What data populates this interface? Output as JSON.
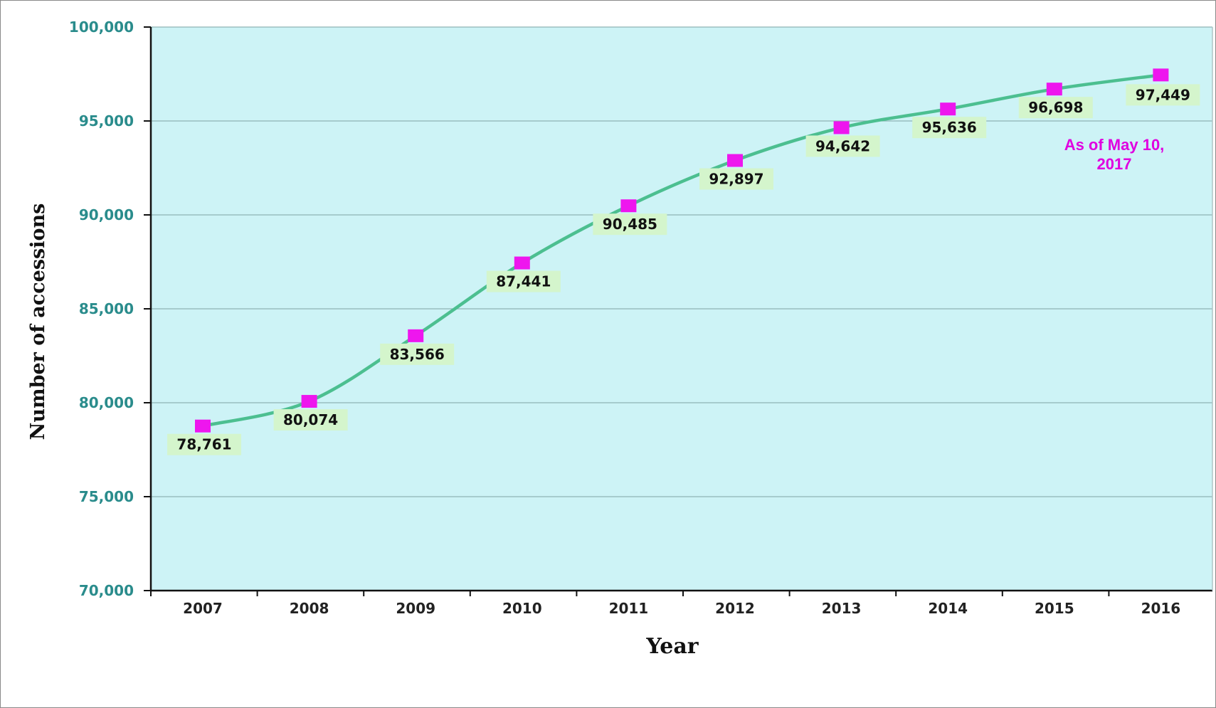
{
  "chart_data": {
    "type": "line",
    "x": [
      "2007",
      "2008",
      "2009",
      "2010",
      "2011",
      "2012",
      "2013",
      "2014",
      "2015",
      "2016"
    ],
    "series": [
      {
        "values": [
          78761,
          80074,
          83566,
          87441,
          90485,
          92897,
          94642,
          95636,
          96698,
          97449
        ],
        "data_labels": [
          "78,761",
          "80,074",
          "83,566",
          "87,441",
          "90,485",
          "92,897",
          "94,642",
          "95,636",
          "96,698",
          "97,449"
        ]
      }
    ],
    "xlabel": "Year",
    "ylabel": "Number of accessions",
    "ylim": [
      70000,
      100000
    ],
    "yticks": [
      70000,
      75000,
      80000,
      85000,
      90000,
      95000,
      100000
    ],
    "ytick_labels": [
      "70,000",
      "75,000",
      "80,000",
      "85,000",
      "90,000",
      "95,000",
      "100,000"
    ],
    "annotation": "As of May 10, 2017",
    "grid": "horizontal",
    "colors": {
      "plot_background": "#cdf3f6",
      "line": "#4cbf90",
      "marker": "#ee16ee",
      "data_label_background": "#d4f5cc",
      "ytick_text": "#2a8c8c",
      "annotation_text": "#e000e0",
      "gridline": "#8fb3b5"
    }
  }
}
